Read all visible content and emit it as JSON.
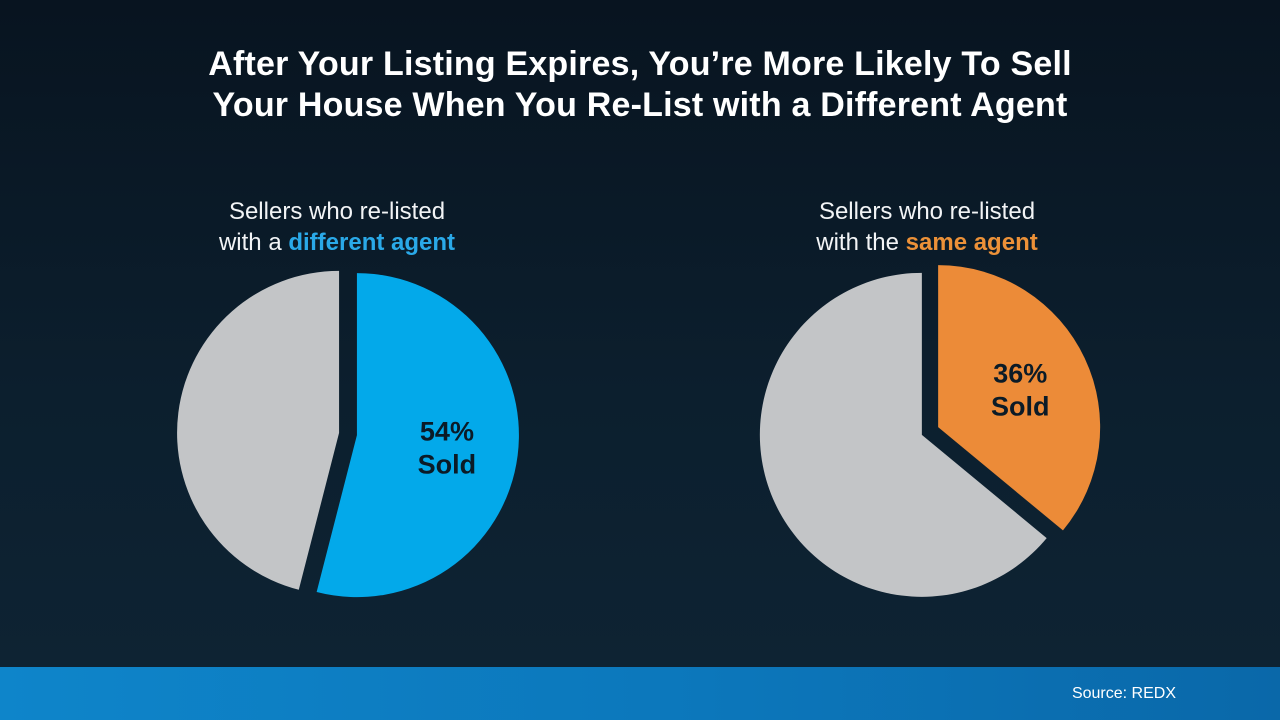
{
  "title": {
    "line1": "After Your Listing Expires, You’re More Likely To Sell",
    "line2": "Your House When You Re-List with a Different Agent"
  },
  "chart_data": [
    {
      "type": "pie",
      "title": "Sellers who re-listed with a different agent",
      "label_line1": "Sellers who re-listed",
      "label_line2_prefix": "with a ",
      "label_line2_highlight": "different agent",
      "highlight_color": "#2aa9e8",
      "start_angle_deg": 0,
      "direction": "clockwise",
      "slice_label_color": "#0b1b27",
      "slices": [
        {
          "name": "sold",
          "value": 54,
          "color": "#03a9ea",
          "label_lines": [
            "54%",
            "Sold"
          ]
        },
        {
          "name": "unsold",
          "value": 46,
          "color": "#c3c5c7",
          "label_lines": []
        }
      ]
    },
    {
      "type": "pie",
      "title": "Sellers who re-listed with the same agent",
      "label_line1": "Sellers who re-listed",
      "label_line2_prefix": "with the ",
      "label_line2_highlight": "same agent",
      "highlight_color": "#ec9138",
      "start_angle_deg": 0,
      "direction": "clockwise",
      "slice_label_color": "#0b1b27",
      "slices": [
        {
          "name": "sold",
          "value": 36,
          "color": "#ec8b38",
          "label_lines": [
            "36%",
            "Sold"
          ]
        },
        {
          "name": "unsold",
          "value": 64,
          "color": "#c3c5c7",
          "label_lines": []
        }
      ]
    }
  ],
  "footer": {
    "source": "Source: REDX"
  },
  "theme": {
    "bg-top": "#081420",
    "bg-bottom": "#0e2434",
    "bar-left": "#0e85ca",
    "bar-right": "#0a68a9",
    "title-color": "#ffffff"
  }
}
